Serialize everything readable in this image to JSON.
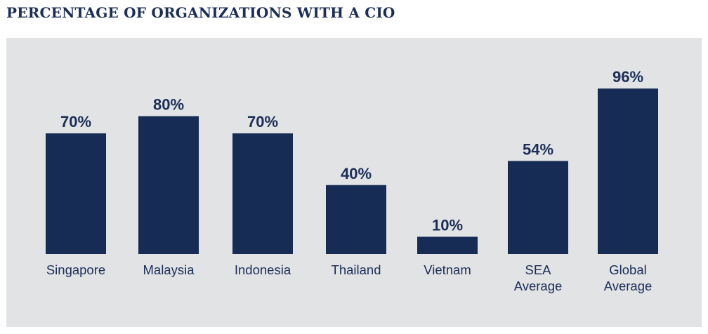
{
  "chart_data": {
    "type": "bar",
    "title": "PERCENTAGE OF ORGANIZATIONS WITH A CIO",
    "categories": [
      [
        "Singapore"
      ],
      [
        "Malaysia"
      ],
      [
        "Indonesia"
      ],
      [
        "Thailand"
      ],
      [
        "Vietnam"
      ],
      [
        "SEA",
        "Average"
      ],
      [
        "Global",
        "Average"
      ]
    ],
    "values": [
      70,
      80,
      70,
      40,
      10,
      54,
      96
    ],
    "value_labels": [
      "70%",
      "80%",
      "70%",
      "40%",
      "10%",
      "54%",
      "96%"
    ],
    "xlabel": "",
    "ylabel": "",
    "ylim": [
      0,
      100
    ],
    "grid": false,
    "colors": {
      "bar": "#172c55",
      "text": "#1b2e57",
      "background": "#e2e3e5"
    }
  }
}
